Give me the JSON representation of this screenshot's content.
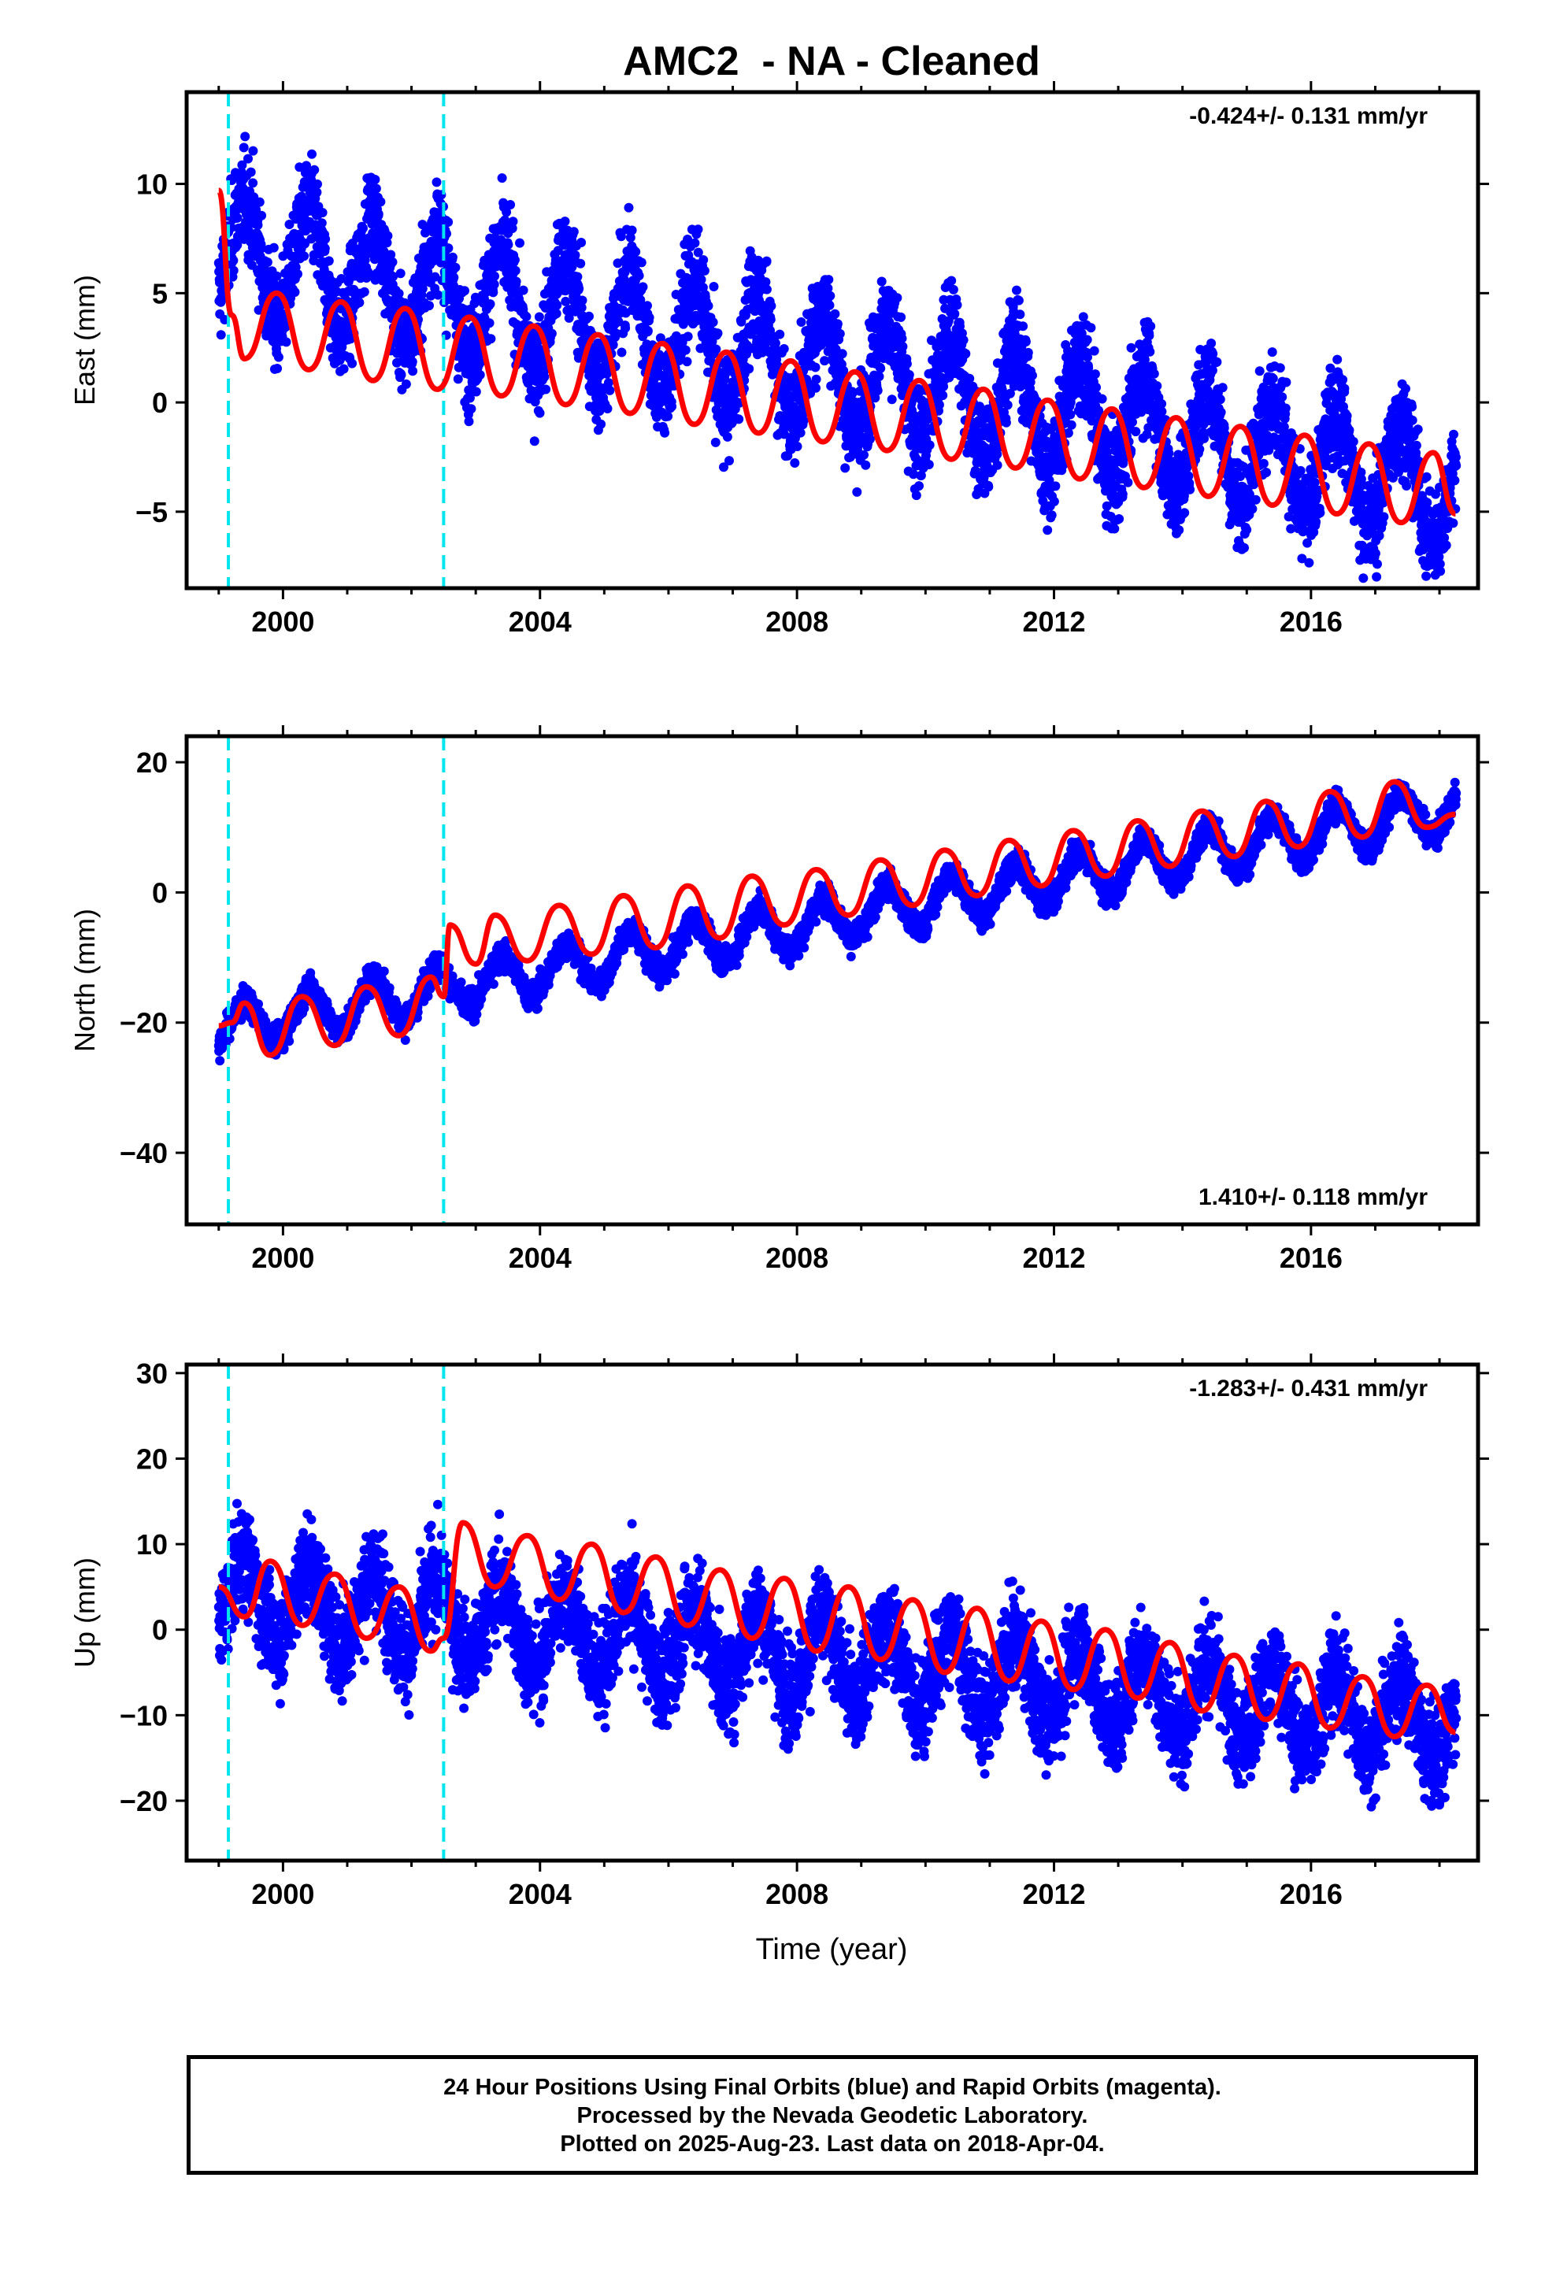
{
  "title": "AMC2  - NA - Cleaned",
  "xlabel": "Time (year)",
  "colors": {
    "points": "#0000ff",
    "fit": "#ff0000",
    "breaks": "#00e5ee",
    "frame": "#000000"
  },
  "caption": {
    "line1": "24 Hour Positions Using Final Orbits (blue) and Rapid Orbits (magenta).",
    "line2": "Processed by the Nevada Geodetic Laboratory.",
    "line3": "Plotted on 2025-Aug-23. Last data on 2018-Apr-04."
  },
  "chart_data": [
    {
      "type": "scatter",
      "component": "East",
      "ylabel": "East (mm)",
      "rate_label": "-0.424+/- 0.131 mm/yr",
      "xlim": [
        1998.5,
        2018.6
      ],
      "ylim": [
        -8.5,
        14.2
      ],
      "xticks": [
        2000,
        2004,
        2008,
        2012,
        2016
      ],
      "yticks": [
        -5,
        0,
        5,
        10
      ],
      "breaks": [
        1999.15,
        2002.5
      ],
      "series": [
        {
          "kind": "points",
          "x_range": [
            1999.0,
            2018.26
          ],
          "trend": [
            7.0,
            -4.0
          ],
          "annual_amp": 2.6,
          "noise": 1.6
        },
        {
          "kind": "fit_line",
          "x": [
            1999.0,
            1999.2,
            1999.4,
            1999.9,
            2000.4,
            2000.9,
            2001.4,
            2001.9,
            2002.4,
            2002.9,
            2003.4,
            2003.9,
            2004.4,
            2004.9,
            2005.4,
            2005.9,
            2006.4,
            2006.9,
            2007.4,
            2007.9,
            2008.4,
            2008.9,
            2009.4,
            2009.9,
            2010.4,
            2010.9,
            2011.4,
            2011.9,
            2012.4,
            2012.9,
            2013.4,
            2013.9,
            2014.4,
            2014.9,
            2015.4,
            2015.9,
            2016.4,
            2016.9,
            2017.4,
            2017.9,
            2018.25
          ],
          "y": [
            9.7,
            4.0,
            2.0,
            5.0,
            1.5,
            4.6,
            1.0,
            4.3,
            0.6,
            3.9,
            0.3,
            3.5,
            -0.1,
            3.1,
            -0.5,
            2.7,
            -1.0,
            2.3,
            -1.4,
            1.9,
            -1.8,
            1.4,
            -2.2,
            1.0,
            -2.6,
            0.6,
            -3.0,
            0.1,
            -3.5,
            -0.3,
            -3.9,
            -0.7,
            -4.3,
            -1.1,
            -4.7,
            -1.5,
            -5.1,
            -1.9,
            -5.5,
            -2.3,
            -5.1
          ]
        }
      ]
    },
    {
      "type": "scatter",
      "component": "North",
      "ylabel": "North (mm)",
      "rate_label": "1.410+/- 0.118 mm/yr",
      "xlim": [
        1998.5,
        2018.6
      ],
      "ylim": [
        -51,
        24
      ],
      "xticks": [
        2000,
        2004,
        2008,
        2012,
        2016
      ],
      "yticks": [
        -40,
        -20,
        0,
        20
      ],
      "breaks": [
        1999.15,
        2002.5
      ],
      "series": [
        {
          "kind": "points",
          "x_range": [
            1999.0,
            2018.26
          ],
          "trend": [
            -21.0,
            13.0
          ],
          "annual_amp": 3.5,
          "noise": 1.5
        },
        {
          "kind": "fit_line",
          "x": [
            1999.0,
            1999.2,
            1999.4,
            1999.8,
            2000.3,
            2000.8,
            2001.3,
            2001.8,
            2002.3,
            2002.5,
            2002.6,
            2003.0,
            2003.3,
            2003.8,
            2004.3,
            2004.8,
            2005.3,
            2005.8,
            2006.3,
            2006.8,
            2007.3,
            2007.8,
            2008.3,
            2008.8,
            2009.3,
            2009.8,
            2010.3,
            2010.8,
            2011.3,
            2011.8,
            2012.3,
            2012.8,
            2013.3,
            2013.8,
            2014.3,
            2014.8,
            2015.3,
            2015.8,
            2016.3,
            2016.8,
            2017.3,
            2017.8,
            2018.25
          ],
          "y": [
            -20.5,
            -20.0,
            -17.0,
            -25.0,
            -16.0,
            -23.5,
            -14.5,
            -22.0,
            -13.0,
            -16.0,
            -5.0,
            -11.0,
            -3.5,
            -10.5,
            -2.0,
            -9.5,
            -0.5,
            -8.5,
            1.0,
            -7.0,
            2.5,
            -5.0,
            3.5,
            -3.5,
            5.0,
            -2.0,
            6.5,
            -0.5,
            8.0,
            1.0,
            9.5,
            2.5,
            11.0,
            4.0,
            12.5,
            5.5,
            14.0,
            7.0,
            15.5,
            8.5,
            17.0,
            10.0,
            12.0
          ]
        }
      ]
    },
    {
      "type": "scatter",
      "component": "Up",
      "ylabel": "Up (mm)",
      "rate_label": "-1.283+/- 0.431 mm/yr",
      "xlim": [
        1998.5,
        2018.6
      ],
      "ylim": [
        -27,
        31
      ],
      "xticks": [
        2000,
        2004,
        2008,
        2012,
        2016
      ],
      "yticks": [
        -20,
        -10,
        0,
        10,
        20,
        30
      ],
      "breaks": [
        1999.15,
        2002.5
      ],
      "series": [
        {
          "kind": "points",
          "x_range": [
            1999.0,
            2018.26
          ],
          "trend": [
            4.0,
            -11.0
          ],
          "annual_amp": 4.5,
          "noise": 4.0
        },
        {
          "kind": "fit_line",
          "x": [
            1999.0,
            1999.4,
            1999.8,
            2000.3,
            2000.8,
            2001.3,
            2001.8,
            2002.3,
            2002.5,
            2002.8,
            2003.3,
            2003.8,
            2004.3,
            2004.8,
            2005.3,
            2005.8,
            2006.3,
            2006.8,
            2007.3,
            2007.8,
            2008.3,
            2008.8,
            2009.3,
            2009.8,
            2010.3,
            2010.8,
            2011.3,
            2011.8,
            2012.3,
            2012.8,
            2013.3,
            2013.8,
            2014.3,
            2014.8,
            2015.3,
            2015.8,
            2016.3,
            2016.8,
            2017.3,
            2017.8,
            2018.25
          ],
          "y": [
            5.0,
            1.5,
            8.0,
            0.5,
            6.5,
            -1.0,
            5.0,
            -2.5,
            -1.0,
            12.5,
            5.0,
            11.0,
            3.5,
            10.0,
            2.0,
            8.5,
            0.5,
            7.0,
            -1.0,
            6.0,
            -2.5,
            5.0,
            -3.5,
            3.5,
            -5.0,
            2.5,
            -6.0,
            1.0,
            -7.0,
            0.0,
            -8.0,
            -1.5,
            -9.5,
            -3.0,
            -10.5,
            -4.0,
            -11.5,
            -5.5,
            -12.5,
            -6.5,
            -12.0
          ]
        }
      ]
    }
  ]
}
